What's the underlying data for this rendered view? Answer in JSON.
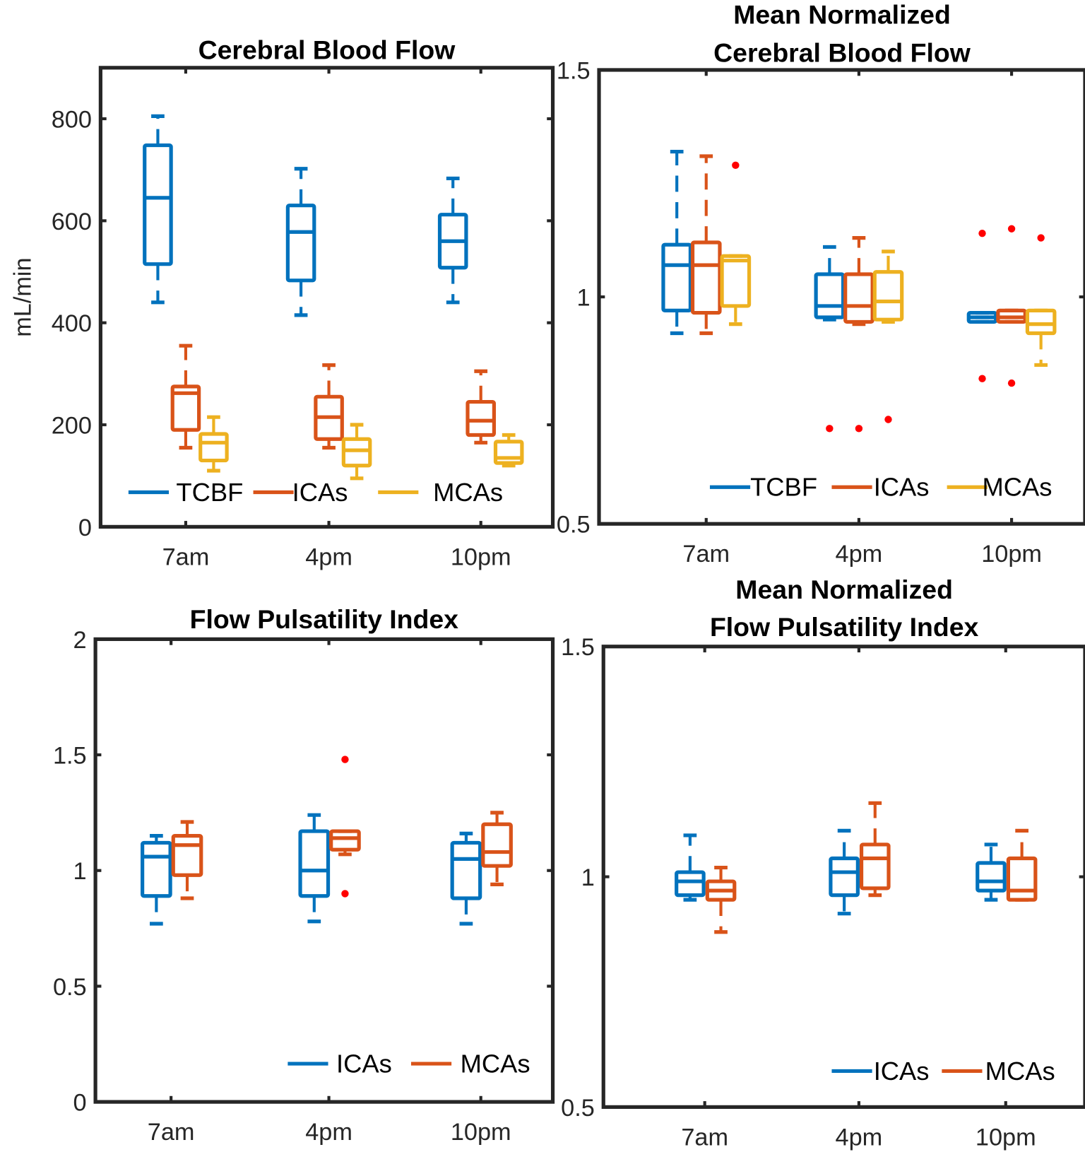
{
  "chart_data": [
    {
      "type": "box",
      "title": [
        "Cerebral Blood Flow"
      ],
      "ylabel": "mL/min",
      "xlabel": "",
      "ylim": [
        0,
        900
      ],
      "yticks": [
        0,
        200,
        400,
        600,
        800
      ],
      "ytick_labels": [
        "0",
        "200",
        "400",
        "600",
        "800"
      ],
      "categories": [
        "7am",
        "4pm",
        "10pm"
      ],
      "legend": {
        "position": "bottom",
        "entries": [
          "TCBF",
          "ICAs",
          "MCAs"
        ]
      },
      "series": [
        {
          "name": "TCBF",
          "color": "#0072BD",
          "stats": [
            {
              "lo": 440,
              "q1": 515,
              "med": 645,
              "q3": 748,
              "hi": 805
            },
            {
              "lo": 415,
              "q1": 483,
              "med": 578,
              "q3": 630,
              "hi": 702
            },
            {
              "lo": 440,
              "q1": 508,
              "med": 560,
              "q3": 612,
              "hi": 683
            }
          ],
          "outliers": [
            [],
            [],
            []
          ]
        },
        {
          "name": "ICAs",
          "color": "#D95319",
          "stats": [
            {
              "lo": 155,
              "q1": 190,
              "med": 262,
              "q3": 275,
              "hi": 355
            },
            {
              "lo": 155,
              "q1": 172,
              "med": 215,
              "q3": 255,
              "hi": 317
            },
            {
              "lo": 165,
              "q1": 180,
              "med": 208,
              "q3": 245,
              "hi": 305
            }
          ],
          "outliers": [
            [],
            [],
            []
          ]
        },
        {
          "name": "MCAs",
          "color": "#EDB120",
          "stats": [
            {
              "lo": 110,
              "q1": 130,
              "med": 165,
              "q3": 182,
              "hi": 215
            },
            {
              "lo": 95,
              "q1": 120,
              "med": 150,
              "q3": 172,
              "hi": 200
            },
            {
              "lo": 120,
              "q1": 125,
              "med": 135,
              "q3": 167,
              "hi": 180
            }
          ],
          "outliers": [
            [],
            [],
            []
          ]
        }
      ]
    },
    {
      "type": "box",
      "title": [
        "Mean Normalized",
        "Cerebral Blood Flow"
      ],
      "ylabel": "",
      "xlabel": "",
      "ylim": [
        0.5,
        1.5
      ],
      "yticks": [
        0.5,
        1,
        1.5
      ],
      "ytick_labels": [
        "0.5",
        "1",
        "1.5"
      ],
      "categories": [
        "7am",
        "4pm",
        "10pm"
      ],
      "legend": {
        "position": "bottom-right",
        "entries": [
          "TCBF",
          "ICAs",
          "MCAs"
        ]
      },
      "series": [
        {
          "name": "TCBF",
          "color": "#0072BD",
          "stats": [
            {
              "lo": 0.92,
              "q1": 0.97,
              "med": 1.07,
              "q3": 1.115,
              "hi": 1.32
            },
            {
              "lo": 0.95,
              "q1": 0.955,
              "med": 0.98,
              "q3": 1.05,
              "hi": 1.11
            },
            {
              "lo": 0.945,
              "q1": 0.945,
              "med": 0.955,
              "q3": 0.965,
              "hi": 0.965
            }
          ],
          "outliers": [
            [],
            [
              0.71
            ],
            [
              1.14,
              0.82
            ]
          ]
        },
        {
          "name": "ICAs",
          "color": "#D95319",
          "stats": [
            {
              "lo": 0.92,
              "q1": 0.965,
              "med": 1.07,
              "q3": 1.12,
              "hi": 1.31
            },
            {
              "lo": 0.94,
              "q1": 0.945,
              "med": 0.98,
              "q3": 1.05,
              "hi": 1.13
            },
            {
              "lo": 0.945,
              "q1": 0.945,
              "med": 0.955,
              "q3": 0.97,
              "hi": 0.97
            }
          ],
          "outliers": [
            [],
            [
              0.71
            ],
            [
              1.15,
              0.81
            ]
          ]
        },
        {
          "name": "MCAs",
          "color": "#EDB120",
          "stats": [
            {
              "lo": 0.94,
              "q1": 0.98,
              "med": 1.08,
              "q3": 1.09,
              "hi": 1.09
            },
            {
              "lo": 0.945,
              "q1": 0.95,
              "med": 0.99,
              "q3": 1.055,
              "hi": 1.1
            },
            {
              "lo": 0.85,
              "q1": 0.92,
              "med": 0.94,
              "q3": 0.97,
              "hi": 0.97
            }
          ],
          "outliers": [
            [
              1.29
            ],
            [
              0.73
            ],
            [
              1.13
            ]
          ]
        }
      ]
    },
    {
      "type": "box",
      "title": [
        "Flow Pulsatility Index"
      ],
      "ylabel": "",
      "xlabel": "",
      "ylim": [
        0,
        2
      ],
      "yticks": [
        0,
        0.5,
        1,
        1.5,
        2
      ],
      "ytick_labels": [
        "0",
        "0.5",
        "1",
        "1.5",
        "2"
      ],
      "categories": [
        "7am",
        "4pm",
        "10pm"
      ],
      "legend": {
        "position": "bottom-right",
        "entries": [
          "ICAs",
          "MCAs"
        ]
      },
      "series": [
        {
          "name": "ICAs",
          "color": "#0072BD",
          "stats": [
            {
              "lo": 0.77,
              "q1": 0.89,
              "med": 1.06,
              "q3": 1.12,
              "hi": 1.15
            },
            {
              "lo": 0.78,
              "q1": 0.89,
              "med": 1.0,
              "q3": 1.17,
              "hi": 1.24
            },
            {
              "lo": 0.77,
              "q1": 0.88,
              "med": 1.05,
              "q3": 1.12,
              "hi": 1.16
            }
          ],
          "outliers": [
            [],
            [],
            []
          ]
        },
        {
          "name": "MCAs",
          "color": "#D95319",
          "stats": [
            {
              "lo": 0.88,
              "q1": 0.98,
              "med": 1.11,
              "q3": 1.15,
              "hi": 1.21
            },
            {
              "lo": 1.07,
              "q1": 1.09,
              "med": 1.14,
              "q3": 1.17,
              "hi": 1.17
            },
            {
              "lo": 0.94,
              "q1": 1.02,
              "med": 1.08,
              "q3": 1.2,
              "hi": 1.25
            }
          ],
          "outliers": [
            [],
            [
              1.48,
              0.9
            ],
            []
          ]
        }
      ]
    },
    {
      "type": "box",
      "title": [
        "Mean Normalized",
        "Flow Pulsatility Index"
      ],
      "ylabel": "",
      "xlabel": "",
      "ylim": [
        0.5,
        1.5
      ],
      "yticks": [
        0.5,
        1,
        1.5
      ],
      "ytick_labels": [
        "0.5",
        "1",
        "1.5"
      ],
      "categories": [
        "7am",
        "4pm",
        "10pm"
      ],
      "legend": {
        "position": "bottom-right",
        "entries": [
          "ICAs",
          "MCAs"
        ]
      },
      "series": [
        {
          "name": "ICAs",
          "color": "#0072BD",
          "stats": [
            {
              "lo": 0.95,
              "q1": 0.96,
              "med": 0.99,
              "q3": 1.01,
              "hi": 1.09
            },
            {
              "lo": 0.92,
              "q1": 0.96,
              "med": 1.01,
              "q3": 1.04,
              "hi": 1.1
            },
            {
              "lo": 0.95,
              "q1": 0.97,
              "med": 0.99,
              "q3": 1.03,
              "hi": 1.07
            }
          ],
          "outliers": [
            [],
            [],
            []
          ]
        },
        {
          "name": "MCAs",
          "color": "#D95319",
          "stats": [
            {
              "lo": 0.88,
              "q1": 0.95,
              "med": 0.97,
              "q3": 0.99,
              "hi": 1.02
            },
            {
              "lo": 0.96,
              "q1": 0.975,
              "med": 1.04,
              "q3": 1.07,
              "hi": 1.16
            },
            {
              "lo": 0.95,
              "q1": 0.95,
              "med": 0.97,
              "q3": 1.04,
              "hi": 1.1
            }
          ],
          "outliers": [
            [],
            [],
            []
          ]
        }
      ]
    }
  ],
  "colors": {
    "axis": "#262626",
    "outlier": "#FF0000"
  }
}
